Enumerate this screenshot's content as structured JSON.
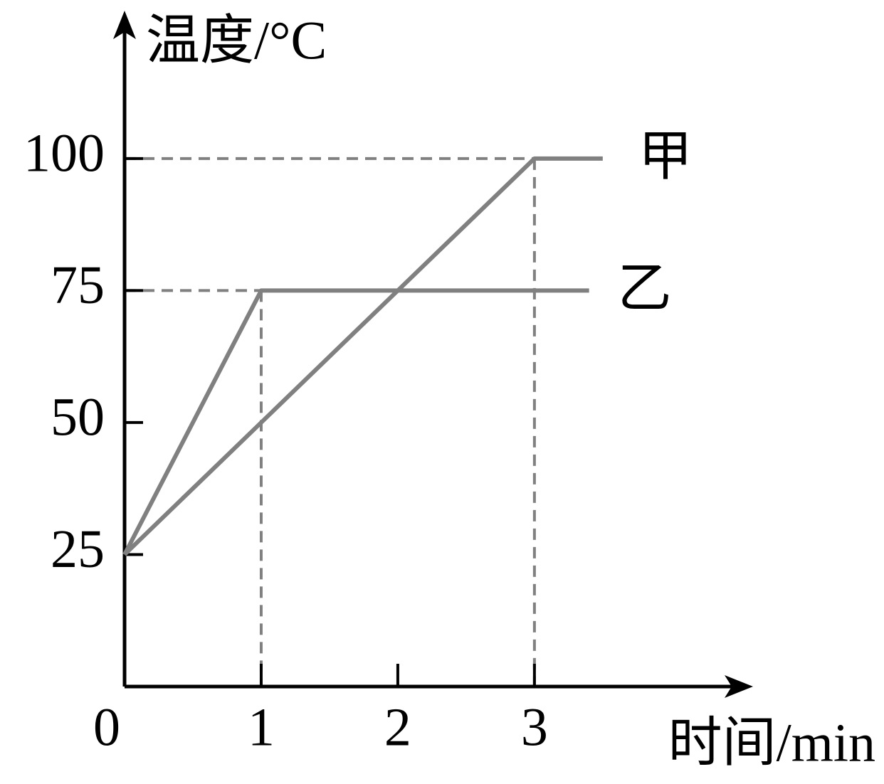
{
  "chart_data": {
    "type": "line",
    "y_label": "温度/°C",
    "x_label": "时间/min",
    "series": [
      {
        "name": "甲",
        "color": "#808080",
        "x": [
          0,
          3,
          3.5
        ],
        "values": [
          25,
          100,
          100
        ]
      },
      {
        "name": "乙",
        "color": "#808080",
        "x": [
          0,
          1,
          3.4
        ],
        "values": [
          25,
          75,
          75
        ]
      }
    ],
    "xlim": [
      0,
      4.6
    ],
    "ylim": [
      0,
      128
    ],
    "xticks": [
      0,
      1,
      2,
      3
    ],
    "yticks": [
      25,
      50,
      75,
      100
    ]
  }
}
